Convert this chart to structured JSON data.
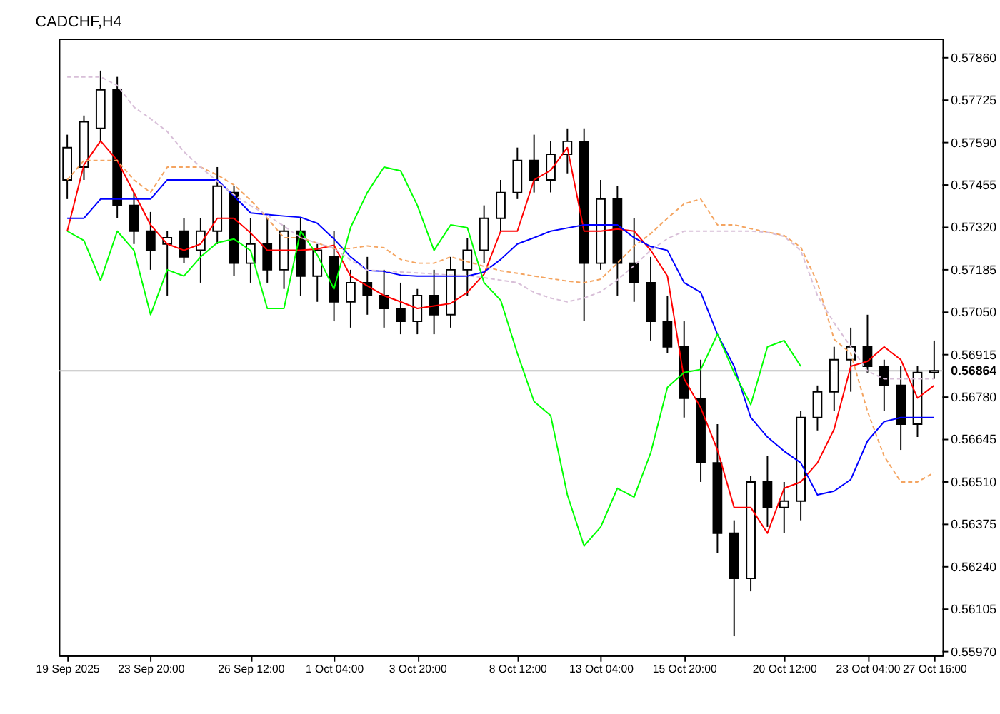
{
  "chart_data": {
    "type": "candlestick",
    "title": "CADCHF,H4",
    "categories": [
      "19 Sep 2025",
      null,
      null,
      null,
      null,
      "23 Sep 20:00",
      null,
      null,
      null,
      null,
      null,
      "26 Sep 12:00",
      null,
      null,
      null,
      null,
      "1 Oct 04:00",
      null,
      null,
      null,
      null,
      "3 Oct 20:00",
      null,
      null,
      null,
      null,
      null,
      "8 Oct 12:00",
      null,
      null,
      null,
      null,
      "13 Oct 04:00",
      null,
      null,
      null,
      null,
      "15 Oct 20:00",
      null,
      null,
      null,
      null,
      null,
      "20 Oct 12:00",
      null,
      null,
      null,
      null,
      "23 Oct 04:00",
      null,
      null,
      null,
      "27 Oct 16:00"
    ],
    "ohlc": [
      [
        0.57471,
        0.57615,
        0.5741,
        0.57574
      ],
      [
        0.57512,
        0.57676,
        0.57471,
        0.57656
      ],
      [
        0.57635,
        0.57819,
        0.57594,
        0.57758
      ],
      [
        0.57758,
        0.57799,
        0.57349,
        0.5739
      ],
      [
        0.5739,
        0.57431,
        0.57267,
        0.57308
      ],
      [
        0.57308,
        0.57369,
        0.57185,
        0.57247
      ],
      [
        0.57267,
        0.57308,
        0.57103,
        0.57287
      ],
      [
        0.57308,
        0.57349,
        0.57206,
        0.57226
      ],
      [
        0.57247,
        0.57349,
        0.57144,
        0.57308
      ],
      [
        0.57308,
        0.57512,
        0.57267,
        0.57451
      ],
      [
        0.57431,
        0.57451,
        0.57165,
        0.57206
      ],
      [
        0.57206,
        0.57349,
        0.57144,
        0.57267
      ],
      [
        0.57267,
        0.57349,
        0.57144,
        0.57185
      ],
      [
        0.57185,
        0.57328,
        0.57124,
        0.57308
      ],
      [
        0.57308,
        0.57349,
        0.57103,
        0.57165
      ],
      [
        0.57165,
        0.57267,
        0.57083,
        0.57247
      ],
      [
        0.57226,
        0.57308,
        0.57021,
        0.57083
      ],
      [
        0.57083,
        0.57185,
        0.57001,
        0.57144
      ],
      [
        0.57144,
        0.57226,
        0.57042,
        0.57103
      ],
      [
        0.57103,
        0.57185,
        0.57001,
        0.57062
      ],
      [
        0.57062,
        0.57144,
        0.5698,
        0.57021
      ],
      [
        0.57021,
        0.57124,
        0.5698,
        0.57103
      ],
      [
        0.57103,
        0.57185,
        0.5698,
        0.57042
      ],
      [
        0.57042,
        0.57226,
        0.57001,
        0.57185
      ],
      [
        0.57185,
        0.57287,
        0.57103,
        0.57247
      ],
      [
        0.57247,
        0.5739,
        0.57206,
        0.57349
      ],
      [
        0.57349,
        0.57471,
        0.57308,
        0.57431
      ],
      [
        0.57431,
        0.57574,
        0.5741,
        0.57533
      ],
      [
        0.57533,
        0.57615,
        0.57431,
        0.57471
      ],
      [
        0.57471,
        0.57594,
        0.57431,
        0.57553
      ],
      [
        0.57553,
        0.57635,
        0.57492,
        0.57594
      ],
      [
        0.57594,
        0.57635,
        0.57021,
        0.57206
      ],
      [
        0.57206,
        0.57471,
        0.57185,
        0.5741
      ],
      [
        0.5741,
        0.57451,
        0.57103,
        0.57206
      ],
      [
        0.57206,
        0.57349,
        0.57083,
        0.57144
      ],
      [
        0.57144,
        0.57226,
        0.5696,
        0.57021
      ],
      [
        0.57021,
        0.57103,
        0.56919,
        0.5694
      ],
      [
        0.5694,
        0.57021,
        0.56715,
        0.56776
      ],
      [
        0.56776,
        0.56899,
        0.5651,
        0.56571
      ],
      [
        0.56571,
        0.56694,
        0.56285,
        0.56347
      ],
      [
        0.56347,
        0.56388,
        0.56019,
        0.56203
      ],
      [
        0.56203,
        0.5653,
        0.56162,
        0.5651
      ],
      [
        0.5651,
        0.56592,
        0.56367,
        0.56429
      ],
      [
        0.56429,
        0.5651,
        0.56347,
        0.56449
      ],
      [
        0.56449,
        0.56735,
        0.56388,
        0.56715
      ],
      [
        0.56715,
        0.56817,
        0.56674,
        0.56797
      ],
      [
        0.56797,
        0.5694,
        0.56735,
        0.56899
      ],
      [
        0.56899,
        0.57001,
        0.56797,
        0.5694
      ],
      [
        0.5694,
        0.57042,
        0.56858,
        0.56878
      ],
      [
        0.56878,
        0.56899,
        0.56735,
        0.56817
      ],
      [
        0.56817,
        0.56878,
        0.56612,
        0.56694
      ],
      [
        0.56694,
        0.56878,
        0.56653,
        0.56858
      ],
      [
        0.56858,
        0.5696,
        0.56838,
        0.56864
      ]
    ],
    "series": [
      {
        "type": "line",
        "color": "#ff0000",
        "line_style": "solid",
        "values": [
          0.57308,
          0.57519,
          0.57595,
          0.57533,
          0.5743,
          0.57328,
          0.57267,
          0.57247,
          0.57267,
          0.57349,
          0.57349,
          0.57302,
          0.57247,
          0.57247,
          0.57247,
          0.57251,
          0.57263,
          0.57165,
          0.57134,
          0.57103,
          0.57083,
          0.57062,
          0.5707,
          0.57078,
          0.57113,
          0.57171,
          0.57308,
          0.57308,
          0.57471,
          0.57502,
          0.57574,
          0.57308,
          0.57308,
          0.57315,
          0.57308,
          0.57247,
          0.57165,
          0.56838,
          0.56746,
          0.56612,
          0.56429,
          0.56429,
          0.56347,
          0.5649,
          0.5651,
          0.56571,
          0.56678,
          0.56878,
          0.56894,
          0.5694,
          0.56899,
          0.56777,
          0.56817
        ]
      },
      {
        "type": "line",
        "color": "#0000ff",
        "line_style": "solid",
        "values": [
          0.57349,
          0.57349,
          0.5741,
          0.5741,
          0.5741,
          0.5741,
          0.57471,
          0.57471,
          0.57471,
          0.57471,
          0.5742,
          0.57366,
          0.57361,
          0.57356,
          0.57352,
          0.57333,
          0.57283,
          0.57226,
          0.57183,
          0.5718,
          0.57168,
          0.57165,
          0.57165,
          0.57165,
          0.57165,
          0.57178,
          0.57218,
          0.57267,
          0.57287,
          0.57308,
          0.57318,
          0.57328,
          0.57328,
          0.57328,
          0.57287,
          0.57259,
          0.57247,
          0.57144,
          0.57113,
          0.5698,
          0.56878,
          0.56715,
          0.56653,
          0.56608,
          0.56571,
          0.56469,
          0.56481,
          0.56518,
          0.5664,
          0.56702,
          0.56715,
          0.56715,
          0.56715
        ]
      },
      {
        "type": "line",
        "color": "#00ff00",
        "line_style": "solid",
        "values": [
          0.57308,
          0.57278,
          0.57151,
          0.57308,
          0.57247,
          0.57042,
          0.57185,
          0.57165,
          0.57226,
          0.57271,
          0.57283,
          0.57246,
          0.57062,
          0.57062,
          0.57308,
          0.57232,
          0.57124,
          0.5732,
          0.57431,
          0.57512,
          0.575,
          0.5739,
          0.57247,
          0.57328,
          0.57319,
          0.57144,
          0.57088,
          0.56919,
          0.56766,
          0.56721,
          0.56469,
          0.56306,
          0.56367,
          0.5649,
          0.56462,
          0.56603,
          0.56811,
          0.56858,
          0.56868,
          0.5698,
          0.56858,
          0.56756,
          0.5694,
          0.5696,
          0.56878,
          null,
          null,
          null,
          null,
          null,
          null,
          null,
          null
        ]
      },
      {
        "type": "line",
        "color": "#f4a460",
        "line_style": "dashed",
        "values": [
          0.57471,
          0.57533,
          0.57533,
          0.57533,
          0.57471,
          0.57431,
          0.57512,
          0.57512,
          0.57512,
          0.57487,
          0.57455,
          0.57406,
          0.57349,
          0.57287,
          0.57287,
          0.5727,
          0.57253,
          0.57253,
          0.57261,
          0.57255,
          0.57218,
          0.57206,
          0.57206,
          0.57226,
          0.57211,
          0.57196,
          0.57182,
          0.57174,
          0.57165,
          0.57157,
          0.57149,
          0.57144,
          0.57155,
          0.57206,
          0.5726,
          0.573,
          0.57349,
          0.57395,
          0.5741,
          0.57328,
          0.57328,
          0.57316,
          0.57305,
          0.57294,
          0.57257,
          0.57144,
          0.56964,
          0.56919,
          0.56735,
          0.56592,
          0.5651,
          0.5651,
          0.5654
        ]
      },
      {
        "type": "line",
        "color": "#d8bfd8",
        "line_style": "dashed",
        "values": [
          0.57799,
          0.57799,
          0.57799,
          0.57772,
          0.57703,
          0.57666,
          0.57625,
          0.57561,
          0.57512,
          0.57466,
          0.57424,
          0.57389,
          0.57359,
          0.57324,
          0.57287,
          0.5727,
          0.57253,
          0.57216,
          0.57184,
          0.57181,
          0.57178,
          0.57175,
          0.57172,
          0.57168,
          0.57166,
          0.5716,
          0.57152,
          0.57144,
          0.57113,
          0.57095,
          0.57083,
          0.57095,
          0.57115,
          0.57153,
          0.57198,
          0.57247,
          0.57284,
          0.57308,
          0.57308,
          0.57308,
          0.57308,
          0.57308,
          0.57304,
          0.57291,
          0.57246,
          0.57103,
          0.57016,
          0.5694,
          0.56863,
          0.56838,
          0.56838,
          0.56838,
          0.56838
        ]
      }
    ],
    "ylim": [
      0.55958,
      0.57921
    ],
    "yticks": [
      {
        "value": 0.5597,
        "label": "0.55970"
      },
      {
        "value": 0.56105,
        "label": "0.56105"
      },
      {
        "value": 0.5624,
        "label": "0.56240"
      },
      {
        "value": 0.56375,
        "label": "0.56375"
      },
      {
        "value": 0.5651,
        "label": "0.56510"
      },
      {
        "value": 0.56645,
        "label": "0.56645"
      },
      {
        "value": 0.5678,
        "label": "0.56780"
      },
      {
        "value": 0.56915,
        "label": "0.56915"
      },
      {
        "value": 0.5705,
        "label": "0.57050"
      },
      {
        "value": 0.57185,
        "label": "0.57185"
      },
      {
        "value": 0.5732,
        "label": "0.57320"
      },
      {
        "value": 0.57455,
        "label": "0.57455"
      },
      {
        "value": 0.5759,
        "label": "0.57590"
      },
      {
        "value": 0.57725,
        "label": "0.57725"
      },
      {
        "value": 0.5786,
        "label": "0.57860"
      }
    ],
    "ref_lines": [
      {
        "axis": "y",
        "value": 0.56864,
        "label": "0.56864",
        "color": "#c0c0c0"
      }
    ],
    "grid": false
  }
}
